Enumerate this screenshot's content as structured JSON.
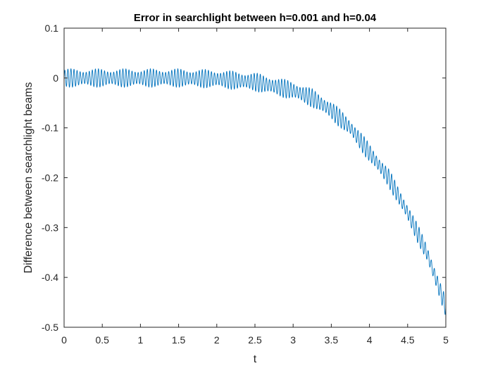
{
  "chart_data": {
    "type": "line",
    "title": "Error in searchlight between h=0.001 and h=0.04",
    "xlabel": "t",
    "ylabel": "Difference between searchlight beams",
    "xlim": [
      0,
      5
    ],
    "ylim": [
      -0.5,
      0.1
    ],
    "xticks": [
      0,
      0.5,
      1,
      1.5,
      2,
      2.5,
      3,
      3.5,
      4,
      4.5,
      5
    ],
    "xtick_labels": [
      "0",
      "0.5",
      "1",
      "1.5",
      "2",
      "2.5",
      "3",
      "3.5",
      "4",
      "4.5",
      "5"
    ],
    "yticks": [
      0.1,
      0,
      -0.1,
      -0.2,
      -0.3,
      -0.4,
      -0.5
    ],
    "ytick_labels": [
      "0.1",
      "0",
      "-0.1",
      "-0.2",
      "-0.3",
      "-0.4",
      "-0.5"
    ],
    "grid": false,
    "box": true,
    "series_color": "#0072BD",
    "oscillation_amplitude": 0.015,
    "oscillation_period": 0.04,
    "trend": {
      "t": [
        0,
        0.5,
        1,
        1.5,
        2,
        2.5,
        3,
        3.25,
        3.5,
        3.75,
        4,
        4.25,
        4.5,
        4.75,
        5
      ],
      "y": [
        0,
        0,
        0,
        0,
        -0.002,
        -0.008,
        -0.025,
        -0.04,
        -0.065,
        -0.1,
        -0.15,
        -0.2,
        -0.27,
        -0.35,
        -0.46
      ]
    }
  }
}
